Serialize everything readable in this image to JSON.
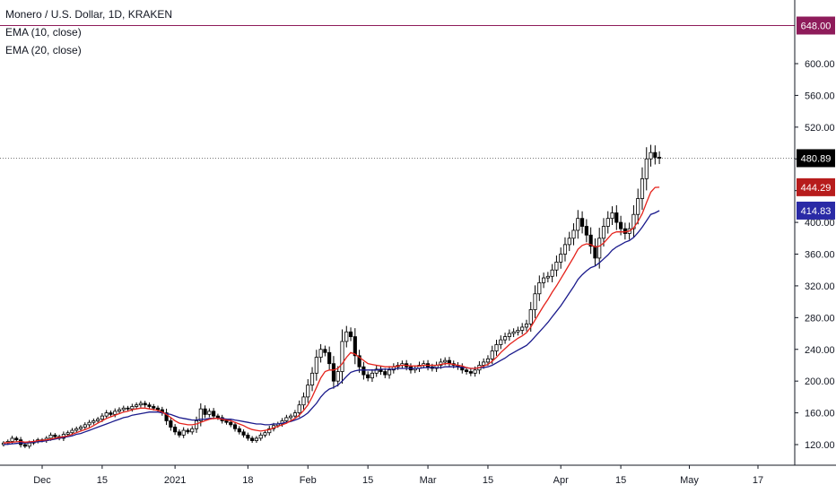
{
  "legend": {
    "symbol": "Monero / U.S. Dollar, 1D, KRAKEN",
    "ema10": "EMA (10, close)",
    "ema20": "EMA (20, close)"
  },
  "colors": {
    "up_body": "#ffffff",
    "down_body": "#000000",
    "wick": "#000000",
    "ema10": "#e5231c",
    "ema20": "#1a1a8c",
    "last_price_tag": "#000000",
    "ema10_tag": "#b71c1c",
    "ema20_tag": "#2a2aa6",
    "high_line": "#8e1b5a"
  },
  "chart_data": {
    "type": "candlestick",
    "title": "Monero / U.S. Dollar, 1D, KRAKEN",
    "ylim": [
      100,
      660
    ],
    "y_ticks": [
      "120.00",
      "160.00",
      "200.00",
      "240.00",
      "280.00",
      "320.00",
      "360.00",
      "400.00",
      "440.00",
      "480.00",
      "520.00",
      "560.00",
      "600.00"
    ],
    "x_ticks": [
      "Dec",
      "15",
      "2021",
      "18",
      "Feb",
      "15",
      "Mar",
      "15",
      "Apr",
      "15",
      "May",
      "17"
    ],
    "x_tick_dates": [
      "2020-12-01",
      "2020-12-15",
      "2021-01-01",
      "2021-01-18",
      "2021-02-01",
      "2021-02-15",
      "2021-03-01",
      "2021-03-15",
      "2021-04-01",
      "2021-04-15",
      "2021-05-01",
      "2021-05-17"
    ],
    "start_date": "2020-11-22",
    "close": [
      122,
      124,
      128,
      126,
      120,
      118,
      122,
      124,
      126,
      125,
      128,
      132,
      130,
      128,
      133,
      135,
      138,
      140,
      142,
      145,
      148,
      150,
      152,
      156,
      160,
      158,
      162,
      164,
      166,
      165,
      168,
      170,
      172,
      170,
      168,
      166,
      164,
      160,
      150,
      142,
      136,
      132,
      138,
      136,
      140,
      150,
      165,
      158,
      162,
      156,
      154,
      150,
      148,
      145,
      140,
      136,
      132,
      128,
      125,
      128,
      132,
      135,
      140,
      144,
      146,
      150,
      154,
      156,
      160,
      170,
      180,
      195,
      210,
      230,
      240,
      236,
      222,
      200,
      212,
      250,
      262,
      256,
      232,
      218,
      208,
      204,
      210,
      215,
      212,
      208,
      214,
      218,
      220,
      222,
      218,
      214,
      216,
      220,
      222,
      218,
      216,
      220,
      224,
      226,
      222,
      220,
      218,
      214,
      212,
      210,
      214,
      220,
      224,
      228,
      238,
      246,
      252,
      256,
      260,
      262,
      264,
      268,
      272,
      290,
      310,
      324,
      330,
      332,
      340,
      350,
      360,
      372,
      380,
      390,
      405,
      395,
      384,
      370,
      355,
      380,
      395,
      405,
      412,
      400,
      392,
      386,
      392,
      410,
      430,
      455,
      480,
      488,
      482,
      481
    ],
    "ema10": [
      122,
      122.5,
      123,
      123.5,
      124,
      123,
      123.5,
      124,
      125,
      125.5,
      126,
      127,
      128,
      129,
      130,
      131,
      133,
      135,
      137,
      139,
      141,
      144,
      147,
      150,
      153,
      155,
      157,
      159,
      161,
      162,
      164,
      165,
      166,
      166,
      165,
      164,
      163,
      161,
      158,
      154,
      150,
      147,
      146,
      145,
      145,
      146,
      148,
      150,
      152,
      153,
      153,
      152,
      151,
      150,
      148,
      146,
      144,
      141,
      139,
      138,
      137,
      138,
      139,
      141,
      143,
      145,
      147,
      150,
      153,
      157,
      163,
      170,
      180,
      192,
      204,
      212,
      214,
      214,
      216,
      222,
      230,
      236,
      234,
      230,
      226,
      222,
      221,
      220,
      219,
      218,
      218,
      218,
      219,
      220,
      220,
      219,
      219,
      219,
      220,
      220,
      220,
      220,
      221,
      222,
      222,
      221,
      220,
      219,
      217,
      216,
      216,
      217,
      219,
      221,
      225,
      230,
      236,
      241,
      246,
      250,
      254,
      257,
      261,
      268,
      277,
      286,
      295,
      303,
      312,
      320,
      329,
      338,
      347,
      356,
      366,
      371,
      373,
      372,
      369,
      370,
      374,
      380,
      386,
      388,
      388,
      388,
      389,
      393,
      401,
      411,
      425,
      438,
      444,
      444.29
    ],
    "ema20": [
      120,
      120.5,
      121,
      121.5,
      122,
      122,
      122.5,
      123,
      123.5,
      124,
      125,
      126,
      127,
      128,
      129,
      130,
      131,
      133,
      134,
      136,
      138,
      140,
      142,
      144,
      146,
      148,
      150,
      152,
      154,
      155,
      157,
      158,
      159,
      160,
      161,
      161,
      161,
      160,
      159,
      158,
      156,
      154,
      153,
      152,
      151,
      151,
      152,
      152,
      153,
      153,
      153,
      153,
      152,
      152,
      151,
      150,
      149,
      148,
      147,
      146,
      146,
      145,
      145,
      146,
      146,
      147,
      148,
      149,
      151,
      153,
      156,
      160,
      166,
      172,
      180,
      186,
      190,
      192,
      195,
      200,
      206,
      211,
      213,
      214,
      214,
      214,
      214,
      214,
      215,
      215,
      215,
      215,
      216,
      216,
      216,
      216,
      216,
      216,
      217,
      217,
      217,
      217,
      217,
      218,
      218,
      218,
      218,
      217,
      217,
      216,
      216,
      217,
      217,
      218,
      220,
      223,
      226,
      229,
      233,
      236,
      239,
      242,
      245,
      250,
      256,
      262,
      268,
      274,
      281,
      288,
      295,
      303,
      311,
      319,
      328,
      334,
      339,
      343,
      345,
      349,
      354,
      359,
      365,
      369,
      372,
      375,
      377,
      381,
      387,
      394,
      402,
      410,
      412,
      414.83
    ],
    "last_price": "480.89",
    "ema10_last": "444.29",
    "ema20_last": "414.83",
    "high_line_price": "648.00",
    "grid": false,
    "legend_placement": "top-left"
  }
}
